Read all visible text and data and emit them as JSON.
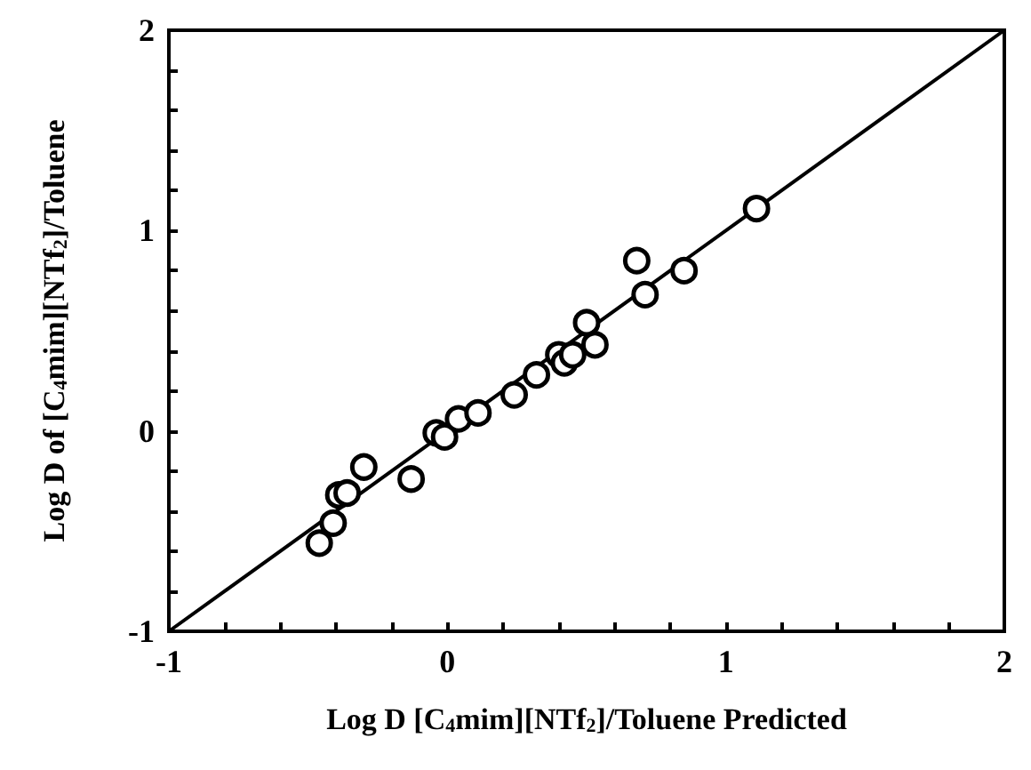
{
  "chart_data": {
    "type": "scatter",
    "xlabel": "Log D [C$_{4}$mim][NTf$_{2}$]/Toluene Predicted",
    "ylabel": "Log D of [C$_{4}$mim][NTf$_{2}$]/Toluene",
    "xlim": [
      -1,
      2
    ],
    "ylim": [
      -1,
      2
    ],
    "xticks": [
      -1,
      {
        "value": -0.8,
        "label": null
      },
      {
        "value": -0.6,
        "label": null
      },
      {
        "value": -0.4,
        "label": null
      },
      {
        "value": -0.2,
        "label": null
      },
      0,
      {
        "value": 0.2,
        "label": null
      },
      {
        "value": 0.4,
        "label": null
      },
      {
        "value": 0.6,
        "label": null
      },
      {
        "value": 0.8,
        "label": null
      },
      1,
      {
        "value": 1.2,
        "label": null
      },
      {
        "value": 1.4,
        "label": null
      },
      {
        "value": 1.6,
        "label": null
      },
      {
        "value": 1.8,
        "label": null
      },
      2
    ],
    "yticks": [
      -1,
      {
        "value": -0.8,
        "label": null
      },
      {
        "value": -0.6,
        "label": null
      },
      {
        "value": -0.4,
        "label": null
      },
      {
        "value": -0.2,
        "label": null
      },
      0,
      {
        "value": 0.2,
        "label": null
      },
      {
        "value": 0.4,
        "label": null
      },
      {
        "value": 0.6,
        "label": null
      },
      {
        "value": 0.8,
        "label": null
      },
      1,
      {
        "value": 1.2,
        "label": null
      },
      {
        "value": 1.4,
        "label": null
      },
      {
        "value": 1.6,
        "label": null
      },
      {
        "value": 1.8,
        "label": null
      },
      2
    ],
    "grid": false,
    "series": [
      {
        "marker": "circle",
        "color": "#000000",
        "x": [
          -0.46,
          -0.41,
          -0.39,
          -0.36,
          -0.3,
          -0.13,
          -0.04,
          -0.01,
          0.04,
          0.11,
          0.24,
          0.32,
          0.4,
          0.42,
          0.45,
          0.5,
          0.53,
          0.68,
          0.71,
          0.85,
          1.11
        ],
        "values": [
          -0.56,
          -0.46,
          -0.32,
          -0.31,
          -0.18,
          -0.24,
          -0.01,
          -0.03,
          0.06,
          0.09,
          0.18,
          0.28,
          0.38,
          0.34,
          0.38,
          0.54,
          0.43,
          0.85,
          0.68,
          0.8,
          1.11
        ]
      },
      {
        "type": "line",
        "marker": "none",
        "line_style": "solid",
        "color": "#000000",
        "x": [
          -1,
          2
        ],
        "values": [
          -1,
          2
        ]
      }
    ]
  }
}
